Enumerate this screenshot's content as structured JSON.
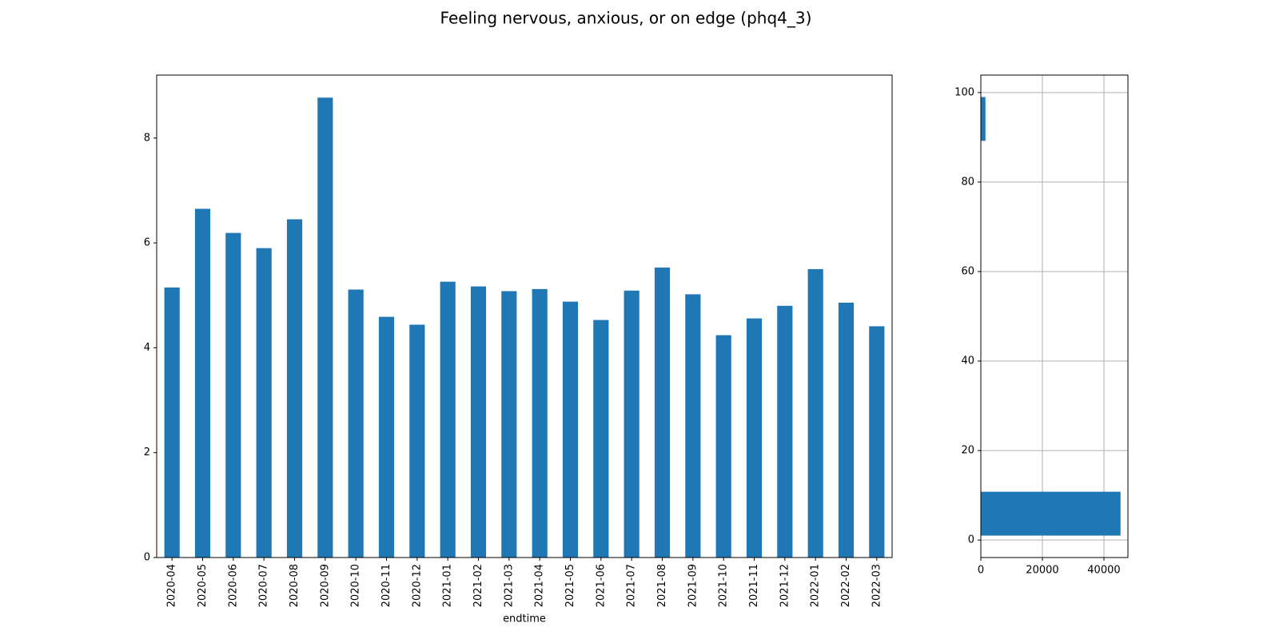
{
  "title": "Feeling nervous, anxious, or on edge (phq4_3)",
  "chart_data": [
    {
      "type": "bar",
      "xlabel": "endtime",
      "categories": [
        "2020-04",
        "2020-05",
        "2020-06",
        "2020-07",
        "2020-08",
        "2020-09",
        "2020-10",
        "2020-11",
        "2020-12",
        "2021-01",
        "2021-02",
        "2021-03",
        "2021-04",
        "2021-05",
        "2021-06",
        "2021-07",
        "2021-08",
        "2021-09",
        "2021-10",
        "2021-11",
        "2021-12",
        "2022-01",
        "2022-02",
        "2022-03"
      ],
      "values": [
        5.15,
        6.65,
        6.19,
        5.9,
        6.45,
        8.77,
        5.11,
        4.59,
        4.44,
        5.26,
        5.17,
        5.08,
        5.12,
        4.88,
        4.53,
        5.09,
        5.53,
        5.02,
        4.24,
        4.56,
        4.8,
        5.5,
        4.86,
        4.41
      ],
      "color": "#1f77b4",
      "ylim": [
        0,
        9.2
      ],
      "yticks": [
        0,
        2,
        4,
        6,
        8
      ],
      "grid": false
    },
    {
      "type": "histogram",
      "orientation": "horizontal",
      "bins": [
        1,
        10.8,
        20.6,
        30.4,
        40.2,
        50,
        59.8,
        69.6,
        79.4,
        89.2,
        99
      ],
      "values": [
        45400,
        0,
        0,
        0,
        0,
        0,
        0,
        0,
        0,
        1500
      ],
      "color": "#1f77b4",
      "xlim": [
        0,
        47800
      ],
      "xticks": [
        0,
        20000,
        40000
      ],
      "ylim": [
        -3.9,
        103.9
      ],
      "yticks": [
        0,
        20,
        40,
        60,
        80,
        100
      ],
      "grid": true
    }
  ]
}
